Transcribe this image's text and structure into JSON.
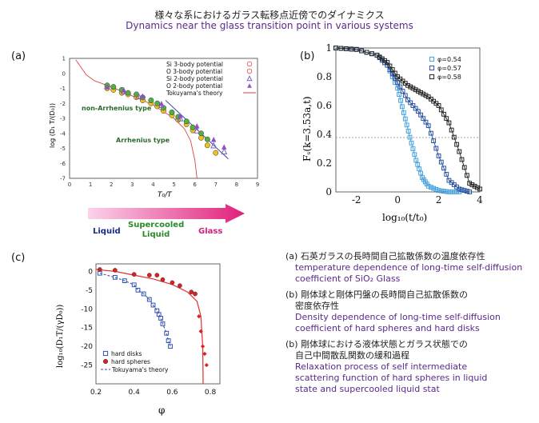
{
  "title_jp": "様々な系におけるガラス転移点近傍でのダイナミクス",
  "title_en": "Dynamics near the glass transition point in various systems",
  "panel_labels": {
    "a": "(a)",
    "b": "(b)",
    "c": "(c)"
  },
  "transition_arrow": {
    "liquid": "Liquid",
    "supercooled_1": "Supercooled",
    "supercooled_2": "Liquid",
    "glass": "Glass"
  },
  "captions": [
    {
      "jp": [
        "(a) 石英ガラスの長時間自己拡散係数の温度依存性"
      ],
      "en": [
        "temperature dependence of long-time self-diffusion",
        "coefficient of SiO₂ Glass"
      ]
    },
    {
      "jp": [
        "(b) 剛体球と剛体円盤の長時間自己拡散係数の",
        "密度依存性"
      ],
      "en": [
        "Density dependence of long-time self-diffusion",
        "coefficient of hard spheres and hard disks"
      ]
    },
    {
      "jp": [
        "(b) 剛体球における液体状態とガラス状態での",
        "自己中間散乱関数の緩和過程"
      ],
      "en": [
        "Relaxation process of self intermediate",
        "scattering function of hard spheres in liquid",
        "state and supercooled liquid stat"
      ]
    }
  ],
  "chart_data": [
    {
      "type": "scatter",
      "xlabel": "T₀/T",
      "ylabel": "log (D₁ T/(D₀))",
      "xlim": [
        0,
        9
      ],
      "ylim": [
        -7,
        1
      ],
      "xticks": [
        "0",
        "1",
        "2",
        "3",
        "4",
        "5",
        "6",
        "7",
        "8",
        "9"
      ],
      "yticks": [
        "1",
        "0",
        "-1",
        "-2",
        "-3",
        "-4",
        "-5",
        "-6",
        "-7"
      ],
      "legend": [
        "Si 3-body potential",
        "O 3-body potential",
        "Si 2-body potential",
        "O 2-body potential",
        "Tokuyama's theory"
      ],
      "annotations": [
        "non-Arrhenius type",
        "Arrhenius type"
      ],
      "series": [
        {
          "name": "Si 3-body potential",
          "x": [
            1.8,
            2.1,
            2.5,
            2.8,
            3.2,
            3.5,
            3.9,
            4.2,
            4.5,
            4.9,
            5.2,
            5.6,
            5.9,
            6.3,
            6.6,
            7.0
          ],
          "y": [
            -1.0,
            -1.1,
            -1.3,
            -1.4,
            -1.6,
            -1.8,
            -2.0,
            -2.2,
            -2.5,
            -2.8,
            -3.1,
            -3.4,
            -3.8,
            -4.3,
            -4.8,
            -5.3
          ]
        },
        {
          "name": "O 3-body potential",
          "x": [
            1.8,
            2.1,
            2.5,
            2.8,
            3.2,
            3.5,
            3.9,
            4.2,
            4.5,
            4.9,
            5.2,
            5.6,
            5.9,
            6.3,
            6.6
          ],
          "y": [
            -0.8,
            -0.9,
            -1.1,
            -1.3,
            -1.4,
            -1.6,
            -1.8,
            -2.0,
            -2.3,
            -2.6,
            -2.9,
            -3.2,
            -3.6,
            -4.0,
            -4.4
          ]
        },
        {
          "name": "Si 2-body potential",
          "x": [
            2.6,
            3.3,
            4.4,
            5.3,
            6.1,
            6.9,
            7.4
          ],
          "y": [
            -1.2,
            -1.5,
            -2.1,
            -3.0,
            -3.8,
            -4.8,
            -5.2
          ]
        },
        {
          "name": "O 2-body potential",
          "x": [
            1.8,
            2.6,
            3.5,
            4.4,
            5.3,
            6.1,
            6.9,
            7.4
          ],
          "y": [
            -0.9,
            -1.1,
            -1.5,
            -2.0,
            -2.8,
            -3.5,
            -4.4,
            -4.9
          ]
        },
        {
          "name": "Tokuyama's theory",
          "x": [
            0.3,
            0.8,
            1.2,
            2,
            3,
            4,
            5,
            5.5,
            5.8,
            6.0,
            6.1
          ],
          "y": [
            0.9,
            -0.1,
            -0.5,
            -0.9,
            -1.5,
            -2.1,
            -3.0,
            -3.7,
            -4.5,
            -5.8,
            -7.0
          ]
        },
        {
          "name": "Arrhenius fit",
          "x": [
            4.6,
            7.6
          ],
          "y": [
            -1.8,
            -5.7
          ]
        }
      ]
    },
    {
      "type": "line",
      "xlabel": "log₁₀(t/t₀)",
      "ylabel": "Fₛ(k=3.53a,t)",
      "xlim": [
        -3,
        4
      ],
      "ylim": [
        0,
        1
      ],
      "xticks": [
        "-2",
        "0",
        "2",
        "4"
      ],
      "yticks": [
        "1",
        "0.8",
        "0.6",
        "0.4",
        "0.2",
        "0"
      ],
      "legend_placement": "top-right",
      "series": [
        {
          "name": "φ=0.54",
          "x": [
            -3,
            -2,
            -1,
            -0.5,
            0,
            0.3,
            0.6,
            0.9,
            1.2,
            1.5,
            2,
            2.5,
            3
          ],
          "y": [
            1.0,
            0.99,
            0.95,
            0.88,
            0.72,
            0.55,
            0.38,
            0.22,
            0.1,
            0.04,
            0.01,
            0.0,
            0.0
          ]
        },
        {
          "name": "φ=0.57",
          "x": [
            -3,
            -2,
            -1,
            -0.5,
            0,
            0.5,
            1,
            1.5,
            2,
            2.5,
            3,
            3.5
          ],
          "y": [
            1.0,
            0.99,
            0.95,
            0.88,
            0.76,
            0.64,
            0.56,
            0.46,
            0.25,
            0.08,
            0.02,
            0.0
          ]
        },
        {
          "name": "φ=0.58",
          "x": [
            -3,
            -2,
            -1,
            -0.5,
            0,
            0.5,
            1,
            1.5,
            2,
            2.5,
            3,
            3.5,
            4
          ],
          "y": [
            1.0,
            0.99,
            0.95,
            0.9,
            0.8,
            0.74,
            0.7,
            0.66,
            0.6,
            0.48,
            0.28,
            0.06,
            0.02
          ]
        }
      ]
    },
    {
      "type": "scatter",
      "xlabel": "φ",
      "ylabel": "log₁₀(D₁T/(γD₀))",
      "xlim": [
        0.2,
        0.85
      ],
      "ylim": [
        -30,
        2
      ],
      "xticks": [
        "0.2",
        "0.4",
        "0.6",
        "0.8"
      ],
      "yticks": [
        "0",
        "-5",
        "-10",
        "-15",
        "-20",
        "-25"
      ],
      "legend": [
        "hard disks",
        "hard spheres",
        "Tokuyama's theory"
      ],
      "series": [
        {
          "name": "hard disks",
          "x": [
            0.22,
            0.3,
            0.35,
            0.4,
            0.42,
            0.45,
            0.48,
            0.5,
            0.52,
            0.53,
            0.54,
            0.55,
            0.57,
            0.58,
            0.59
          ],
          "y": [
            -0.5,
            -1.6,
            -2.5,
            -3.6,
            -5,
            -6,
            -7.5,
            -9,
            -10.5,
            -11.5,
            -12.5,
            -14,
            -16.5,
            -18.5,
            -20
          ]
        },
        {
          "name": "hard spheres",
          "x": [
            0.22,
            0.3,
            0.4,
            0.48,
            0.52,
            0.55,
            0.6,
            0.64,
            0.7,
            0.72,
            0.74,
            0.75,
            0.76,
            0.77,
            0.78
          ],
          "y": [
            0.5,
            0.3,
            -0.8,
            -1,
            -1,
            -2.2,
            -3,
            -3.8,
            -5.5,
            -6,
            -12,
            -16,
            -20,
            -22,
            -25
          ]
        },
        {
          "name": "Tokuyama's theory",
          "x": [
            0.2,
            0.3,
            0.4,
            0.5,
            0.6,
            0.68,
            0.73,
            0.75,
            0.76,
            0.762
          ],
          "y": [
            0.5,
            0,
            -1,
            -2,
            -3.5,
            -5.5,
            -8,
            -12,
            -20,
            -30
          ]
        }
      ]
    }
  ]
}
